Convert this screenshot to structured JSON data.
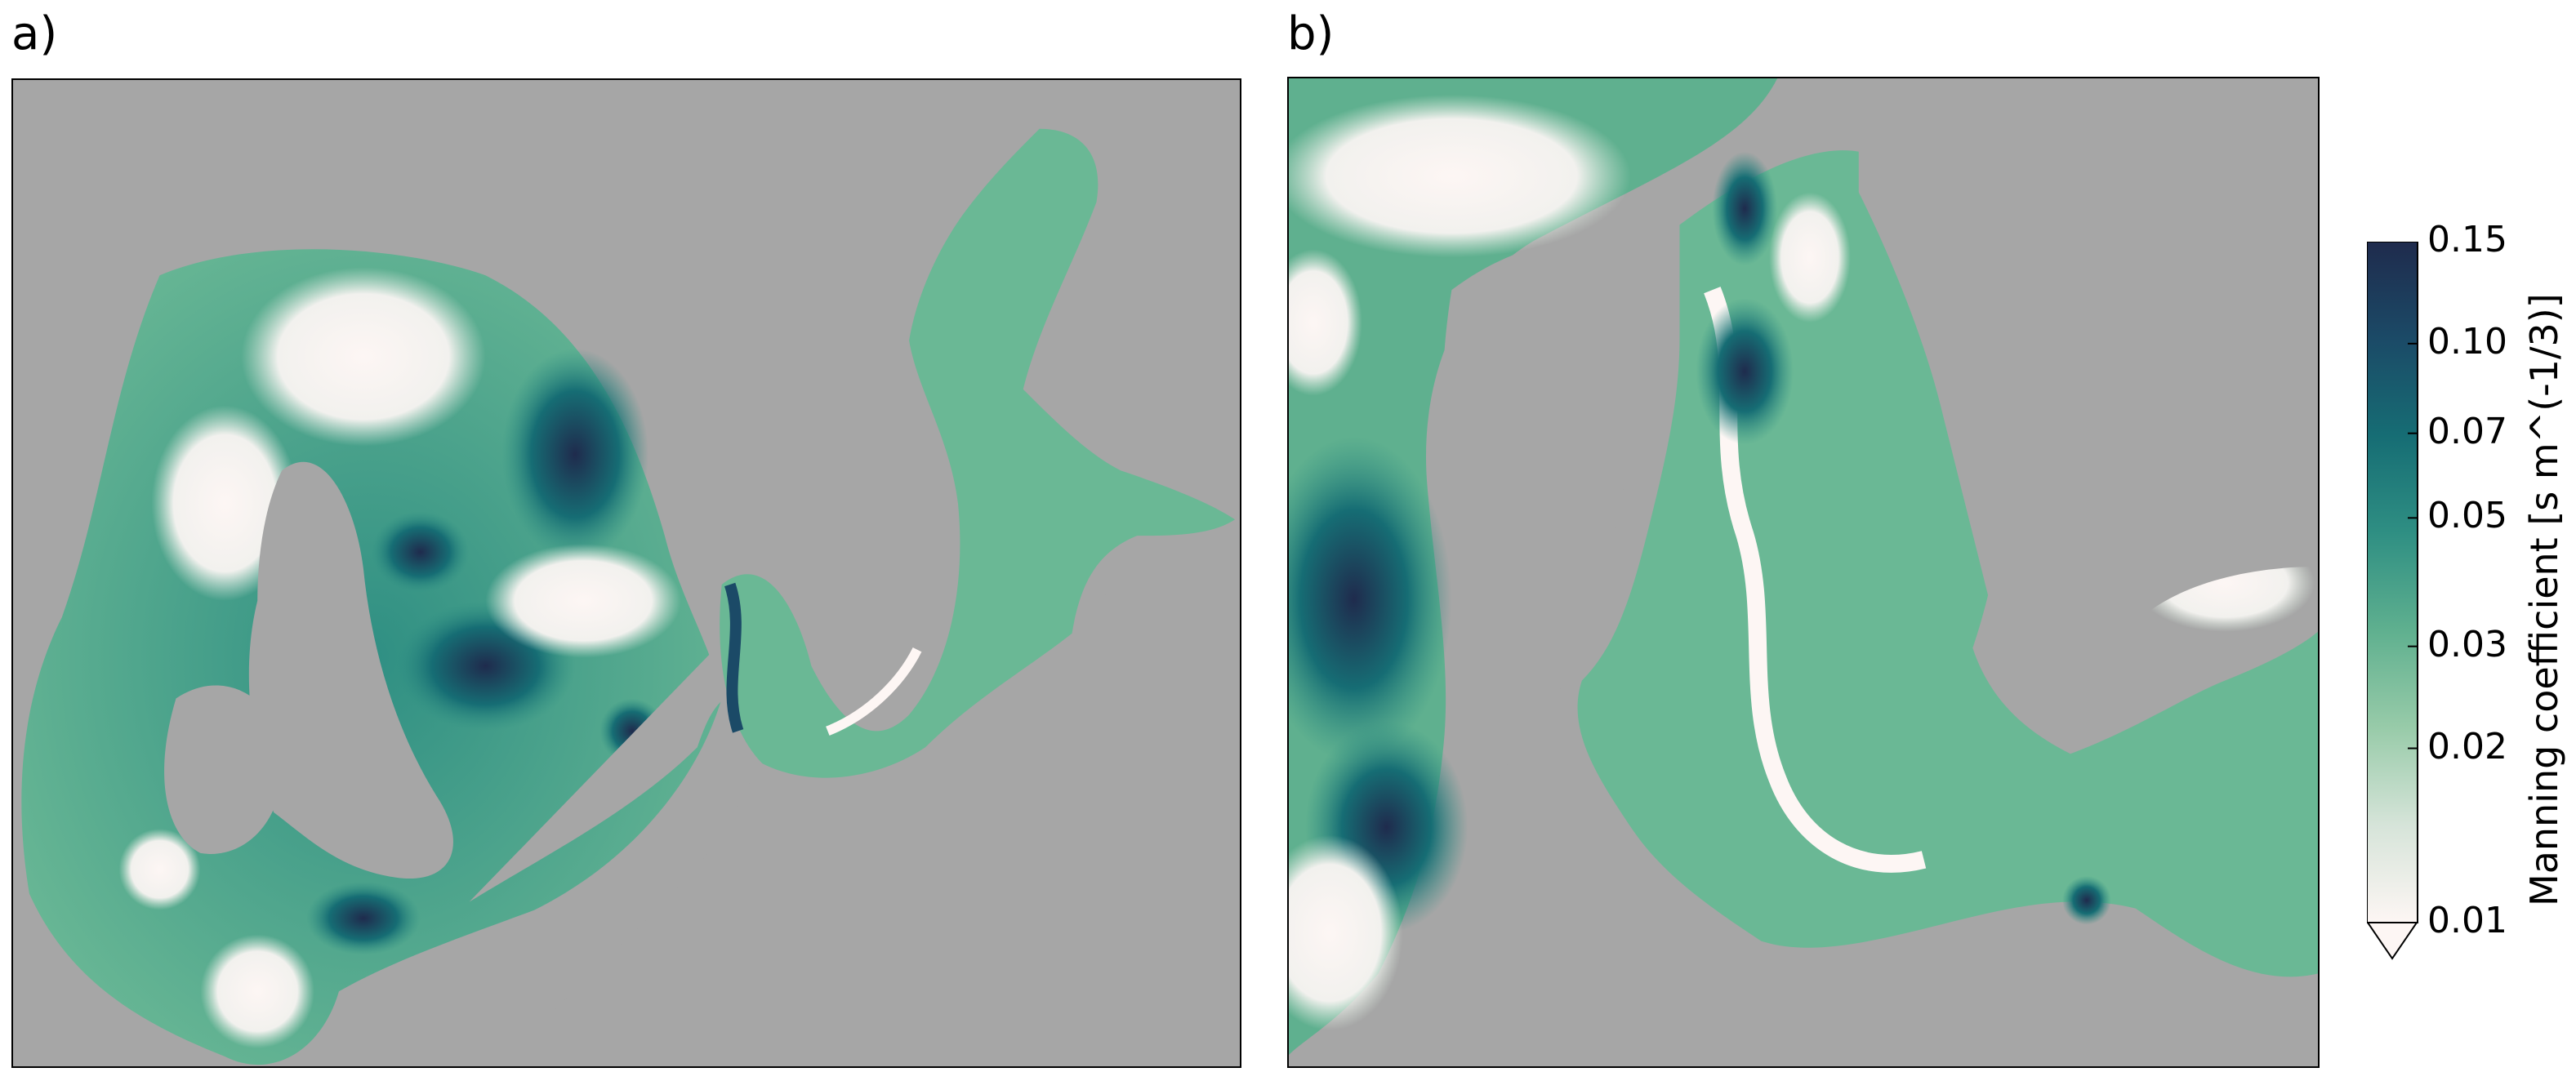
{
  "panels": [
    {
      "label": "a)"
    },
    {
      "label": "b)"
    }
  ],
  "colorbar": {
    "title": "Manning coefficient [s m^(-1/3)]",
    "min": 0.01,
    "max": 0.15,
    "scale": "log",
    "extend": "min",
    "ticks": [
      {
        "value": 0.15,
        "label": "0.15"
      },
      {
        "value": 0.1,
        "label": "0.10"
      },
      {
        "value": 0.07,
        "label": "0.07"
      },
      {
        "value": 0.05,
        "label": "0.05"
      },
      {
        "value": 0.03,
        "label": "0.03"
      },
      {
        "value": 0.02,
        "label": "0.02"
      },
      {
        "value": 0.01,
        "label": "0.01"
      }
    ],
    "colors": [
      "#fdf6f4",
      "#d6e4d9",
      "#98cba9",
      "#5fb08f",
      "#2f8f83",
      "#166d74",
      "#1b4a67",
      "#1f2b4d"
    ]
  },
  "map_style": {
    "land_color": "#a6a6a6"
  }
}
